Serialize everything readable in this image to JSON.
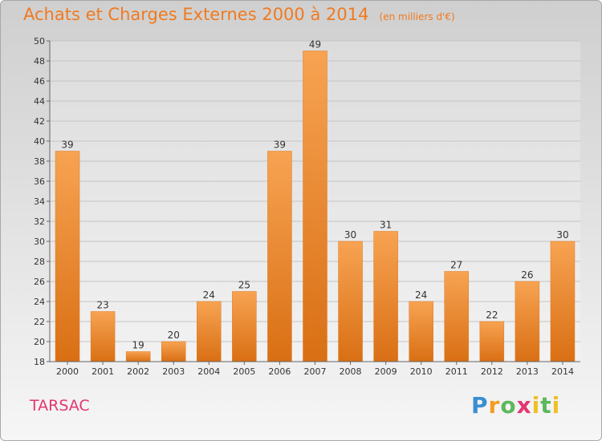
{
  "chart_data": {
    "type": "bar",
    "title": "Achats et Charges Externes 2000 à 2014",
    "subtitle": "(en milliers d'€)",
    "categories": [
      "2000",
      "2001",
      "2002",
      "2003",
      "2004",
      "2005",
      "2006",
      "2007",
      "2008",
      "2009",
      "2010",
      "2011",
      "2012",
      "2013",
      "2014"
    ],
    "values": [
      39,
      23,
      19,
      20,
      24,
      25,
      39,
      49,
      30,
      31,
      24,
      27,
      22,
      26,
      30
    ],
    "ylim": [
      18,
      50
    ],
    "yticks": [
      18,
      20,
      22,
      24,
      26,
      28,
      30,
      32,
      34,
      36,
      38,
      40,
      42,
      44,
      46,
      48,
      50
    ],
    "grid": true,
    "bar_color": "#f08a2c"
  },
  "commune": "TARSAC",
  "logo": "Proxiti"
}
